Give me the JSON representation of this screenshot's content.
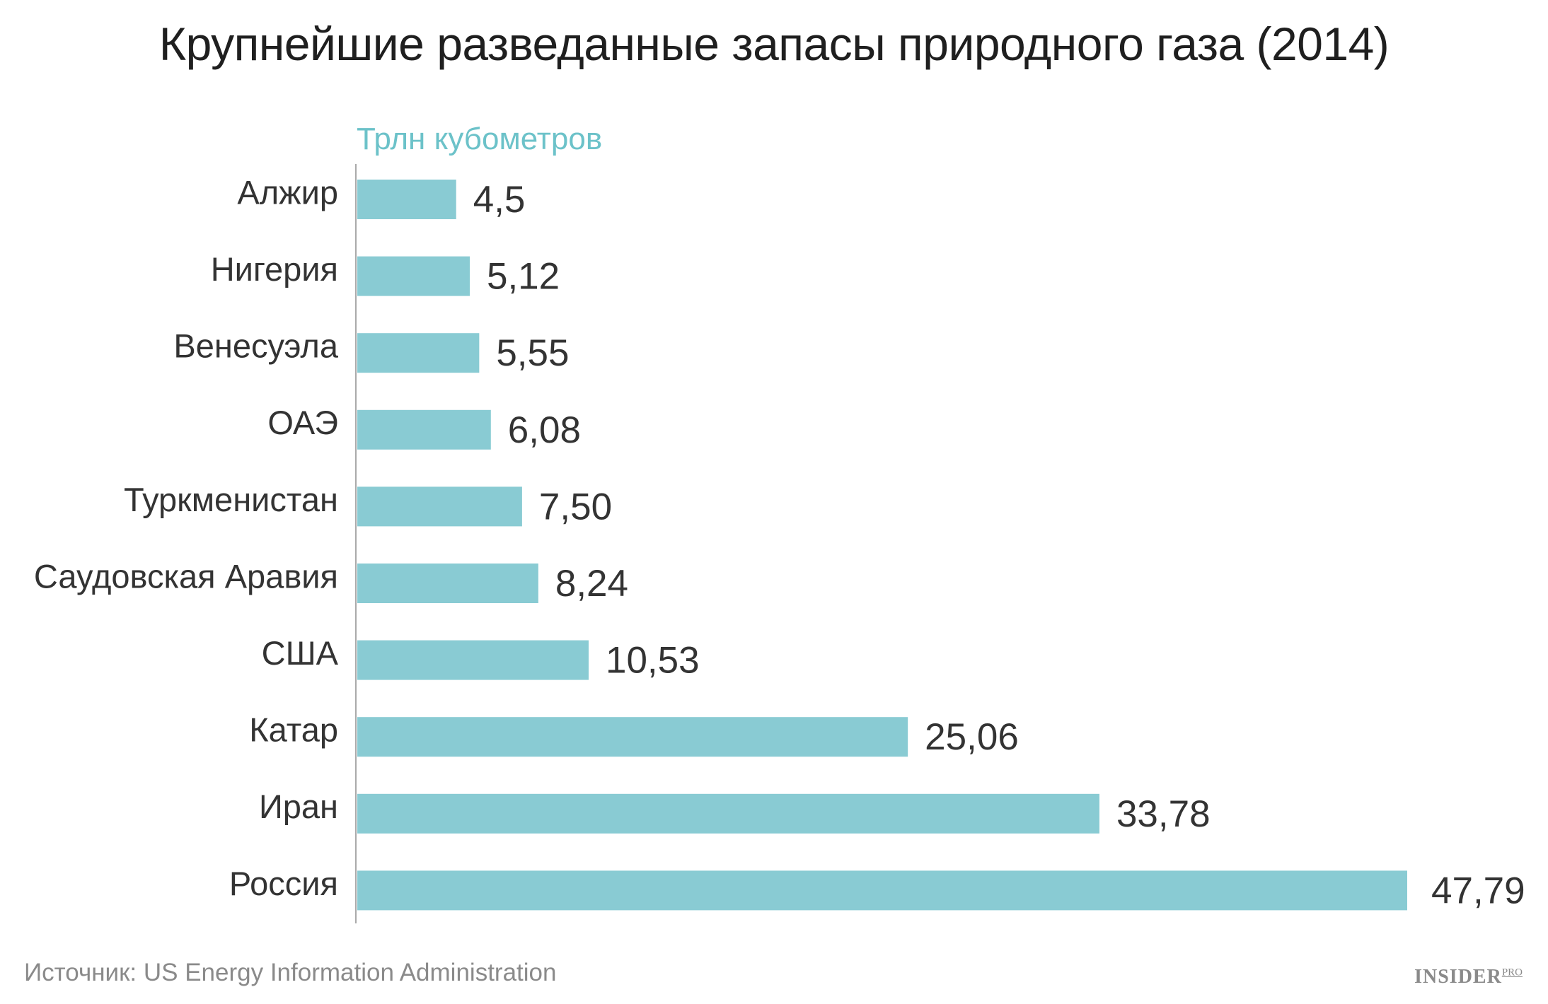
{
  "chart_data": {
    "type": "bar",
    "orientation": "horizontal",
    "title": "Крупнейшие разведанные запасы природного газа (2014)",
    "unit_label": "Трлн кубометров",
    "xlabel": "",
    "ylabel": "",
    "xlim": [
      0,
      47.79
    ],
    "grid": false,
    "categories": [
      "Алжир",
      "Нигерия",
      "Венесуэла",
      "ОАЭ",
      "Туркменистан",
      "Саудовская Аравия",
      "США",
      "Катар",
      "Иран",
      "Россия"
    ],
    "values": [
      4.5,
      5.12,
      5.55,
      6.08,
      7.5,
      8.24,
      10.53,
      25.06,
      33.78,
      47.79
    ],
    "value_labels": [
      "4,5",
      "5,12",
      "5,55",
      "6,08",
      "7,50",
      "8,24",
      "10,53",
      "25,06",
      "33,78",
      "47,79"
    ],
    "bar_color": "#89cbd3"
  },
  "source": "Источник: US Energy Information Administration",
  "brand": {
    "name": "INSIDER",
    "suffix": "PRO"
  },
  "colors": {
    "accent": "#6cc2c9",
    "bar": "#89cbd3",
    "text": "#333333",
    "muted": "#8a8a8a"
  }
}
